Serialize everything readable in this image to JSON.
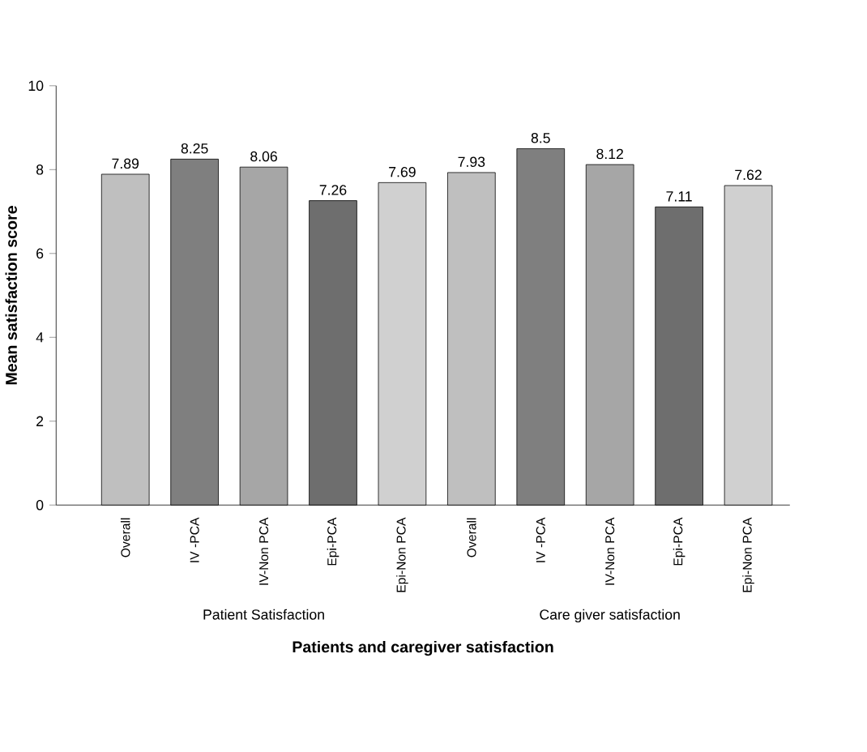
{
  "chart_data": {
    "type": "bar",
    "xlabel": "Patients and caregiver satisfaction",
    "ylabel": "Mean satisfaction score",
    "categories": [
      "Overall",
      "IV -PCA",
      "IV-Non PCA",
      "Epi-PCA",
      "Epi-Non PCA",
      "Overall",
      "IV -PCA",
      "IV-Non PCA",
      "Epi-PCA",
      "Epi-Non PCA"
    ],
    "values": [
      7.89,
      8.25,
      8.06,
      7.26,
      7.69,
      7.93,
      8.5,
      8.12,
      7.11,
      7.62
    ],
    "colors": [
      "#bfbfbf",
      "#7f7f7f",
      "#a6a6a6",
      "#6e6e6e",
      "#d0d0d0",
      "#bfbfbf",
      "#7f7f7f",
      "#a6a6a6",
      "#6e6e6e",
      "#d0d0d0"
    ],
    "ylim": [
      0,
      10
    ],
    "yticks": [
      0,
      2,
      4,
      6,
      8,
      10
    ],
    "data_labels": true,
    "annotations": [
      "Patient Satisfaction",
      "Care giver satisfaction"
    ]
  }
}
